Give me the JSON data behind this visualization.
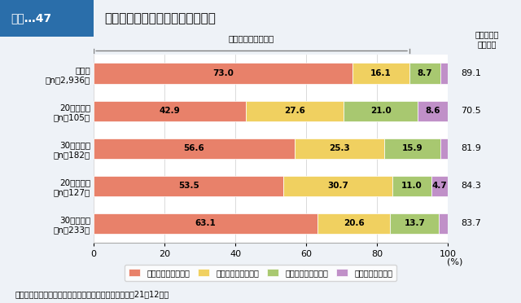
{
  "title": "副菜を１日に２回以上食べる頻度",
  "title_prefix": "図表…47",
  "categories": [
    "全世代\n（n＝2,936）",
    "20歳代男性\n（n＝105）",
    "30歳代男性\n（n＝182）",
    "20歳代女性\n（n＝127）",
    "30歳代女性\n（n＝233）"
  ],
  "series": [
    {
      "label": "ほとんど毎日食べる",
      "color": "#E8816A",
      "values": [
        73.0,
        42.9,
        56.6,
        53.5,
        63.1
      ]
    },
    {
      "label": "週に４～５日食べる",
      "color": "#F0D060",
      "values": [
        16.1,
        27.6,
        25.3,
        30.7,
        20.6
      ]
    },
    {
      "label": "週に２～３日食べる",
      "color": "#A8C870",
      "values": [
        8.7,
        21.0,
        15.9,
        11.0,
        13.7
      ]
    },
    {
      "label": "ほとんど食べない",
      "color": "#C090C8",
      "values": [
        2.2,
        8.6,
        2.2,
        4.7,
        2.6
      ]
    }
  ],
  "subtotals": [
    89.1,
    70.5,
    81.9,
    84.3,
    83.7
  ],
  "xlabel": "(%)",
  "xlim": [
    0,
    100
  ],
  "annotation_yoku": "よく食べる（小計）",
  "annotation_subtotal_label": "よく食べる\n（小計）",
  "source_text": "資料：内閣府「食育の現状と意識に関する調査」（平成21年12月）",
  "bg_color": "#EEF2F7",
  "plot_bg": "#FFFFFF",
  "header_bg": "#2A6EAA",
  "header_text_color": "#FFFFFF"
}
